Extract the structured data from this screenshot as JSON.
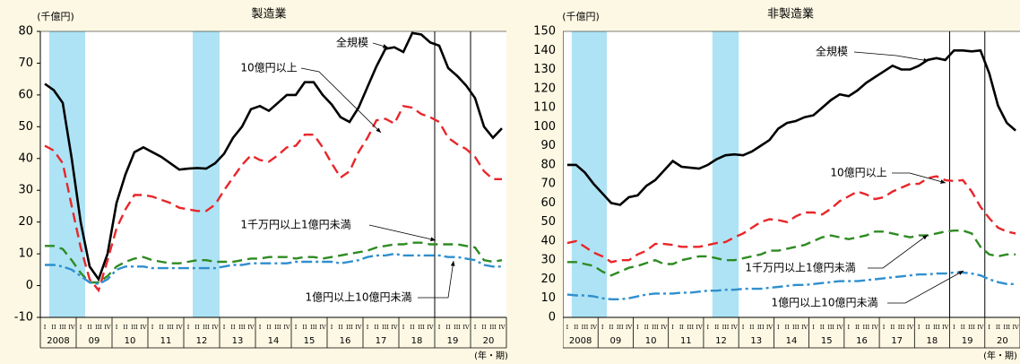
{
  "chart_data": [
    {
      "type": "line",
      "title": "製造業",
      "y_unit": "(千億円)",
      "x_unit": "(年・期)",
      "categories": [
        "I",
        "II",
        "III",
        "IV",
        "I",
        "II",
        "III",
        "IV",
        "I",
        "II",
        "III",
        "IV",
        "I",
        "II",
        "III",
        "IV",
        "I",
        "II",
        "III",
        "IV",
        "I",
        "II",
        "III",
        "IV",
        "I",
        "II",
        "III",
        "IV",
        "I",
        "II",
        "III",
        "IV",
        "I",
        "II",
        "III",
        "IV",
        "I",
        "II",
        "III",
        "IV",
        "I",
        "II",
        "III",
        "IV",
        "I",
        "II",
        "III",
        "IV",
        "I",
        "II",
        "III",
        "IV"
      ],
      "year_labels": [
        "2008",
        "09",
        "10",
        "11",
        "12",
        "13",
        "14",
        "15",
        "16",
        "17",
        "18",
        "19",
        "20"
      ],
      "ylim": [
        -10,
        80
      ],
      "yticks": [
        -10,
        0,
        10,
        20,
        30,
        40,
        50,
        60,
        70,
        80
      ],
      "shaded_periods": [
        [
          1,
          4
        ],
        [
          17,
          19
        ]
      ],
      "vlines": [
        44,
        48
      ],
      "series": [
        {
          "name": "全規模",
          "color": "#000000",
          "dash": "solid",
          "values": [
            63.5,
            61.5,
            57.5,
            40,
            20,
            6,
            2,
            10,
            26,
            35,
            42,
            43.5,
            42,
            40.5,
            38.5,
            36.5,
            36.8,
            37,
            36.8,
            38.5,
            41.5,
            46.5,
            50,
            55.5,
            56.5,
            55,
            57.5,
            60,
            60,
            64,
            64,
            60,
            57,
            53,
            51.5,
            56,
            62.5,
            69,
            74.5,
            75,
            73.5,
            79.5,
            79,
            76.5,
            75.5,
            68.5,
            66,
            63,
            59,
            50,
            46.5,
            49.5
          ]
        },
        {
          "name": "10億円以上",
          "color": "#e8262a",
          "dash": "dashed",
          "values": [
            44,
            42.5,
            38.5,
            25,
            12,
            2,
            -1.5,
            8,
            18,
            24,
            28.5,
            28.5,
            28,
            27,
            26,
            24.5,
            24,
            23.5,
            23.5,
            25.5,
            30,
            34,
            38,
            41,
            39.5,
            39,
            41,
            43.5,
            44,
            47.5,
            47.5,
            43.5,
            38.5,
            34,
            36,
            42,
            46.5,
            52,
            52.5,
            51,
            56.5,
            56,
            54,
            53,
            51.5,
            46.5,
            44.5,
            43,
            40.5,
            36,
            33.5,
            33.5
          ]
        },
        {
          "name": "1千万円以上1億円未満",
          "color": "#2e8b22",
          "dash": "dashed",
          "values": [
            12.5,
            12.5,
            11.5,
            8,
            4,
            1,
            1,
            3,
            6,
            7.5,
            8.5,
            9,
            8,
            7.5,
            7,
            7,
            7.5,
            8,
            8,
            7.5,
            7.5,
            7.5,
            8,
            8.5,
            8.5,
            9,
            9,
            9,
            8.5,
            9,
            9,
            8.5,
            9,
            9.5,
            10,
            10.5,
            11,
            12,
            12.5,
            13,
            13,
            13.5,
            13.5,
            13,
            13,
            13,
            13,
            12.5,
            12,
            8,
            7.5,
            8
          ]
        },
        {
          "name": "1億円以上10億円未満",
          "color": "#2f8fce",
          "dash": "dashdot",
          "values": [
            6.5,
            6.5,
            6,
            5,
            3,
            1,
            0.5,
            2,
            5,
            6,
            6,
            6,
            5.5,
            5.5,
            5.5,
            5.5,
            5.5,
            5.5,
            5.5,
            5.5,
            6,
            6.5,
            6.5,
            7,
            7,
            7,
            7,
            7,
            7.5,
            7.5,
            7.5,
            7.5,
            7.5,
            7,
            7.5,
            8,
            9,
            9.5,
            9.5,
            10,
            9.5,
            9.5,
            9.5,
            9.5,
            9.5,
            9,
            9,
            8.5,
            8,
            6.5,
            6,
            6
          ]
        }
      ]
    },
    {
      "type": "line",
      "title": "非製造業",
      "y_unit": "(千億円)",
      "x_unit": "(年・期)",
      "categories": [
        "I",
        "II",
        "III",
        "IV",
        "I",
        "II",
        "III",
        "IV",
        "I",
        "II",
        "III",
        "IV",
        "I",
        "II",
        "III",
        "IV",
        "I",
        "II",
        "III",
        "IV",
        "I",
        "II",
        "III",
        "IV",
        "I",
        "II",
        "III",
        "IV",
        "I",
        "II",
        "III",
        "IV",
        "I",
        "II",
        "III",
        "IV",
        "I",
        "II",
        "III",
        "IV",
        "I",
        "II",
        "III",
        "IV",
        "I",
        "II",
        "III",
        "IV",
        "I",
        "II",
        "III",
        "IV"
      ],
      "year_labels": [
        "2008",
        "09",
        "10",
        "11",
        "12",
        "13",
        "14",
        "15",
        "16",
        "17",
        "18",
        "19",
        "20"
      ],
      "ylim": [
        0,
        150
      ],
      "yticks": [
        0,
        10,
        20,
        30,
        40,
        50,
        60,
        70,
        80,
        90,
        100,
        110,
        120,
        130,
        140,
        150
      ],
      "shaded_periods": [
        [
          1,
          4
        ],
        [
          17,
          19
        ]
      ],
      "vlines": [
        44,
        48
      ],
      "series": [
        {
          "name": "全規模",
          "color": "#000000",
          "dash": "solid",
          "values": [
            80,
            80,
            76,
            70,
            65,
            60,
            59,
            63,
            64,
            69,
            72,
            77,
            82,
            79,
            78.5,
            78,
            80,
            83,
            85,
            85.5,
            85,
            87,
            90,
            93,
            99,
            102,
            103,
            105,
            106,
            110,
            114,
            117,
            116,
            119,
            123,
            126,
            129,
            132,
            130,
            130,
            132,
            135,
            136,
            135,
            140,
            140,
            139.5,
            140,
            128,
            111,
            102,
            98
          ]
        },
        {
          "name": "10億円以上",
          "color": "#e8262a",
          "dash": "dashed",
          "values": [
            39,
            40,
            37,
            34,
            32,
            29,
            30,
            30,
            33,
            35,
            38.5,
            38.5,
            38,
            37,
            37,
            37,
            38,
            39,
            39.5,
            42,
            44,
            47,
            50,
            51.5,
            51,
            50,
            53,
            55,
            55,
            54,
            57,
            61,
            63.5,
            66,
            64.5,
            62,
            63,
            66,
            68,
            70,
            70,
            73,
            74,
            72,
            71.5,
            72,
            66,
            58,
            52,
            47,
            45,
            44
          ]
        },
        {
          "name": "1千万円以上1億円未満",
          "color": "#2e8b22",
          "dash": "dashed",
          "values": [
            29,
            29,
            28,
            27,
            24,
            22,
            24,
            26,
            27,
            28.5,
            30,
            28,
            28,
            30,
            31,
            32,
            32,
            31,
            30,
            30,
            31,
            32,
            33,
            35,
            35,
            36,
            37,
            38,
            40,
            42,
            43,
            42,
            41,
            42,
            43,
            45,
            45,
            44,
            43,
            42,
            43,
            43,
            44,
            45,
            45.5,
            45.5,
            44,
            37,
            33,
            32,
            33,
            33
          ]
        },
        {
          "name": "1億円以上10億円未満",
          "color": "#2f8fce",
          "dash": "dashdot",
          "values": [
            12,
            11.5,
            11.5,
            11,
            10,
            9.5,
            9.5,
            10,
            11,
            12,
            12.5,
            12.5,
            12.5,
            13,
            13,
            13.5,
            14,
            14,
            14.5,
            14.5,
            15,
            15,
            15,
            15.5,
            16,
            16.5,
            17,
            17,
            17.5,
            18,
            18.5,
            19,
            19,
            19,
            19.5,
            20,
            20.5,
            21,
            21.5,
            22,
            22.5,
            22.5,
            23,
            23,
            23.5,
            23.5,
            23,
            22,
            20,
            18.5,
            17.5,
            17.5
          ]
        }
      ]
    }
  ]
}
